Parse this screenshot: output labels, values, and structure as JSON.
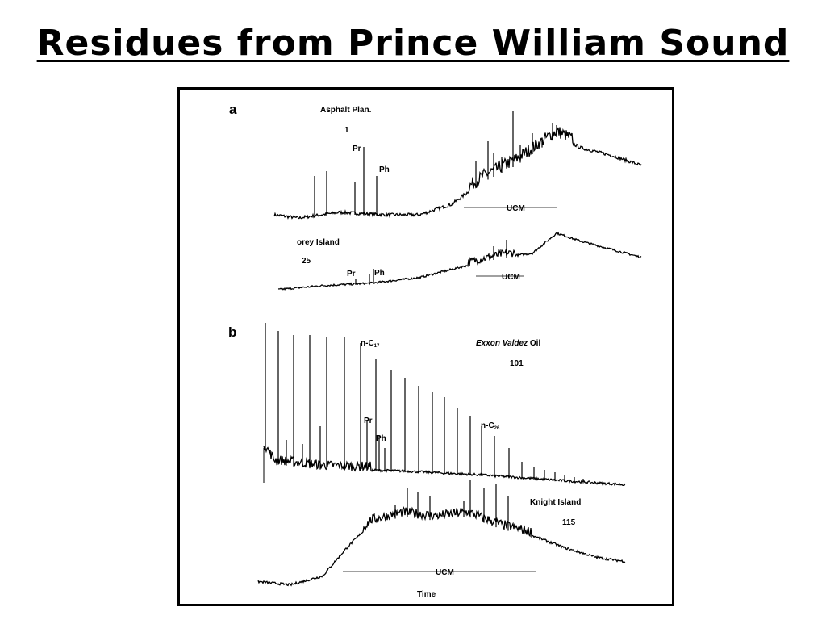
{
  "title": "Residues from Prince William Sound",
  "figure": {
    "panel_a": {
      "label": "a",
      "trace_1": {
        "name": "Asphalt Plan.",
        "number": "1",
        "peak_1": "Pr",
        "peak_2": "Ph",
        "ucm": "UCM"
      },
      "trace_2": {
        "name": "orey Island",
        "number": "25",
        "peak_1": "Pr",
        "peak_2": "Ph",
        "ucm": "UCM"
      }
    },
    "panel_b": {
      "label": "b",
      "trace_1": {
        "name_italic": "Exxon Valdez",
        "name_rest": "Oil",
        "number": "101",
        "peak_1": "Pr",
        "peak_2": "Ph",
        "alkane_1": {
          "prefix": "n-C",
          "subscript": "17"
        },
        "alkane_2": {
          "prefix": "n-C",
          "subscript": "26"
        }
      },
      "trace_2": {
        "name": "Knight Island",
        "number": "115",
        "ucm": "UCM"
      },
      "axis_label": "Time"
    }
  }
}
